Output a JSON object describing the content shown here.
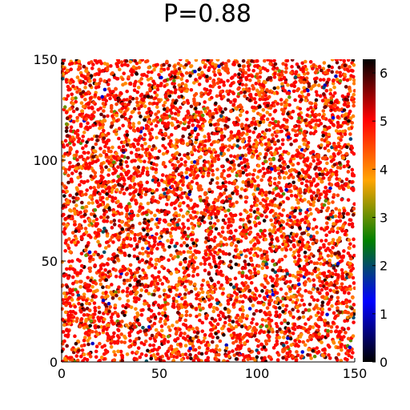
{
  "chart_data": {
    "type": "scatter",
    "title": "P=0.88",
    "xlabel": "",
    "ylabel": "",
    "xlim": [
      0,
      150
    ],
    "ylim": [
      0,
      150
    ],
    "xticks": [
      0,
      50,
      100,
      150
    ],
    "yticks": [
      0,
      50,
      100,
      150
    ],
    "x_tick_labels": [
      "0",
      "50",
      "100",
      "150"
    ],
    "y_tick_labels": [
      "0",
      "50",
      "100",
      "150"
    ],
    "grid": false,
    "legend": "none",
    "point_count": 6000,
    "color_value_mix": [
      {
        "value": 5.0,
        "share": 0.46
      },
      {
        "value": 4.5,
        "share": 0.2
      },
      {
        "value": 4.0,
        "share": 0.18
      },
      {
        "value": 5.7,
        "share": 0.08
      },
      {
        "value": 6.1,
        "share": 0.04
      },
      {
        "value": 3.0,
        "share": 0.02
      },
      {
        "value": 1.0,
        "share": 0.01
      },
      {
        "value": 2.0,
        "share": 0.01
      }
    ],
    "colorbar": {
      "min": 0,
      "max": 6.283,
      "ticks": [
        0,
        1,
        2,
        3,
        4,
        5,
        6
      ],
      "tick_labels": [
        "0",
        "1",
        "2",
        "3",
        "4",
        "5",
        "6"
      ],
      "colors": [
        "#000000",
        "#0000ff",
        "#008000",
        "#ffa500",
        "#ff0000",
        "#000000"
      ]
    }
  }
}
